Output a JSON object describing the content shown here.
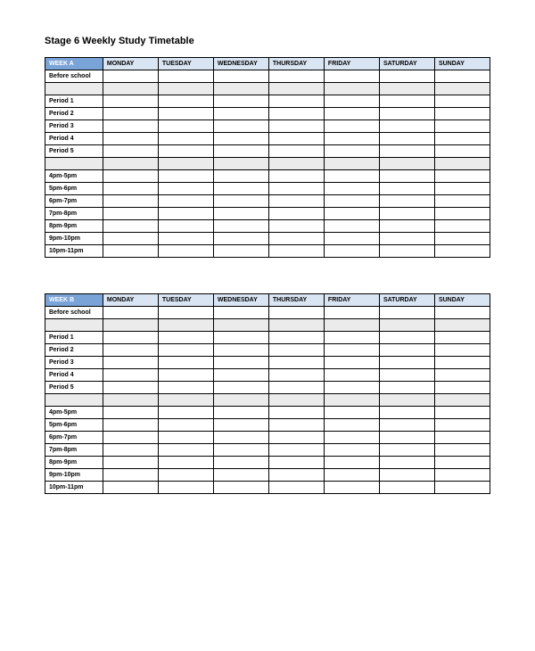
{
  "title": "Stage 6 Weekly Study Timetable",
  "tables": [
    {
      "weekLabel": "WEEK A",
      "days": [
        "MONDAY",
        "TUESDAY",
        "WEDNESDAY",
        "THURSDAY",
        "FRIDAY",
        "SATURDAY",
        "SUNDAY"
      ],
      "rows": [
        {
          "label": "Before school",
          "shaded": false
        },
        {
          "label": "",
          "shaded": true
        },
        {
          "label": "Period 1",
          "shaded": false
        },
        {
          "label": "Period 2",
          "shaded": false
        },
        {
          "label": "Period 3",
          "shaded": false
        },
        {
          "label": "Period 4",
          "shaded": false
        },
        {
          "label": "Period 5",
          "shaded": false
        },
        {
          "label": "",
          "shaded": true
        },
        {
          "label": "4pm-5pm",
          "shaded": false
        },
        {
          "label": "5pm-6pm",
          "shaded": false
        },
        {
          "label": "6pm-7pm",
          "shaded": false
        },
        {
          "label": "7pm-8pm",
          "shaded": false
        },
        {
          "label": "8pm-9pm",
          "shaded": false
        },
        {
          "label": "9pm-10pm",
          "shaded": false
        },
        {
          "label": "10pm-11pm",
          "shaded": false
        }
      ]
    },
    {
      "weekLabel": "WEEK B",
      "days": [
        "MONDAY",
        "TUESDAY",
        "WEDNESDAY",
        "THURSDAY",
        "FRIDAY",
        "SATURDAY",
        "SUNDAY"
      ],
      "rows": [
        {
          "label": "Before school",
          "shaded": false
        },
        {
          "label": "",
          "shaded": true
        },
        {
          "label": "Period 1",
          "shaded": false
        },
        {
          "label": "Period 2",
          "shaded": false
        },
        {
          "label": "Period 3",
          "shaded": false
        },
        {
          "label": "Period 4",
          "shaded": false
        },
        {
          "label": "Period 5",
          "shaded": false
        },
        {
          "label": "",
          "shaded": true
        },
        {
          "label": "4pm-5pm",
          "shaded": false
        },
        {
          "label": "5pm-6pm",
          "shaded": false
        },
        {
          "label": "6pm-7pm",
          "shaded": false
        },
        {
          "label": "7pm-8pm",
          "shaded": false
        },
        {
          "label": "8pm-9pm",
          "shaded": false
        },
        {
          "label": "9pm-10pm",
          "shaded": false
        },
        {
          "label": "10pm-11pm",
          "shaded": false
        }
      ]
    }
  ],
  "colors": {
    "weekHeaderBg": "#7aa3d8",
    "weekHeaderFg": "#ffffff",
    "dayHeaderBg": "#d9e5f3",
    "shadedRowBg": "#ebebeb",
    "border": "#000000",
    "background": "#ffffff"
  }
}
